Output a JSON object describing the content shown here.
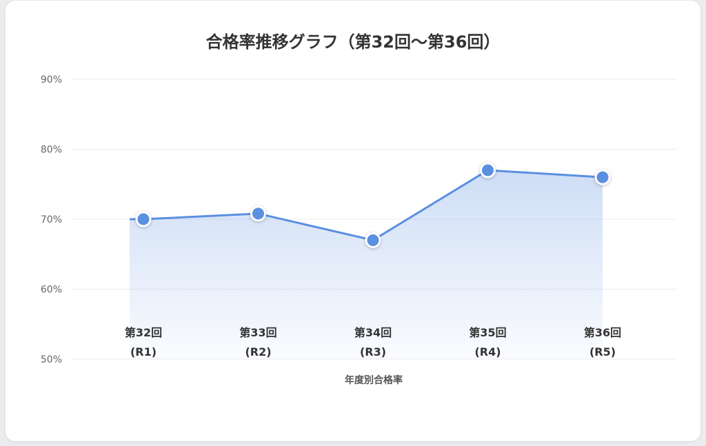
{
  "chart_data": {
    "type": "line",
    "title": "合格率推移グラフ（第32回〜第36回）",
    "xlabel": "年度別合格率",
    "ylabel": "",
    "categories": [
      [
        "第32回",
        "(R1)"
      ],
      [
        "第33回",
        "(R2)"
      ],
      [
        "第34回",
        "(R3)"
      ],
      [
        "第35回",
        "(R4)"
      ],
      [
        "第36回",
        "(R5)"
      ]
    ],
    "series": [
      {
        "values": [
          70.0,
          70.8,
          67.0,
          77.0,
          76.0
        ]
      }
    ],
    "ylim": [
      50,
      90
    ],
    "yticks": [
      50,
      60,
      70,
      80,
      90
    ],
    "ytick_labels": [
      "50%",
      "60%",
      "70%",
      "80%",
      "90%"
    ],
    "grid": true,
    "area_fill": true,
    "line_color": "#5b8fe0",
    "fill_color": "#5b8fe0"
  }
}
